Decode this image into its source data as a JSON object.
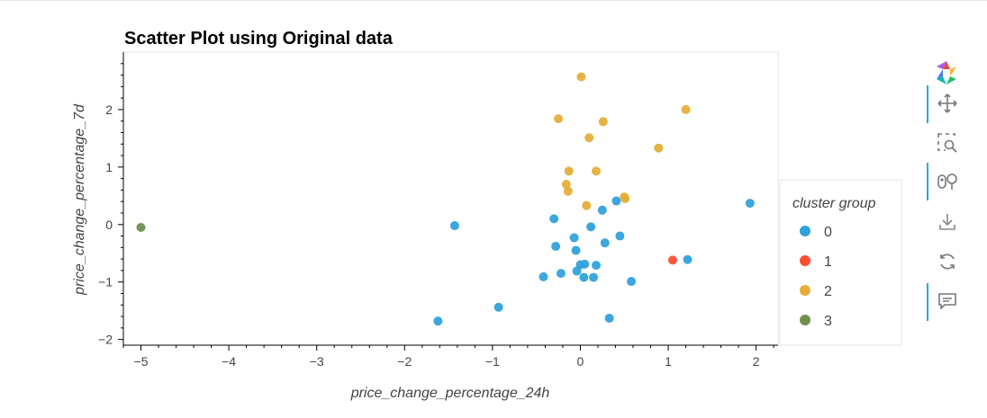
{
  "chart_data": {
    "type": "scatter",
    "title": "Scatter Plot using Original data",
    "xlabel": "price_change_percentage_24h",
    "ylabel": "price_change_percentage_7d",
    "xlim": [
      -5.2,
      2.25
    ],
    "ylim": [
      -2.1,
      3.0
    ],
    "x_ticks": [
      -5,
      -4,
      -3,
      -2,
      -1,
      0,
      1,
      2
    ],
    "y_ticks": [
      -2,
      -1,
      0,
      1,
      2
    ],
    "grid": false,
    "legend": {
      "title": "cluster group",
      "placement": "right"
    },
    "series": [
      {
        "name": "0",
        "color": "#30a2da",
        "points": [
          [
            -1.43,
            -0.02
          ],
          [
            -1.62,
            -1.68
          ],
          [
            -0.93,
            -1.44
          ],
          [
            -0.42,
            -0.91
          ],
          [
            -0.22,
            -0.85
          ],
          [
            -0.3,
            0.1
          ],
          [
            -0.28,
            -0.38
          ],
          [
            -0.07,
            -0.23
          ],
          [
            -0.05,
            -0.45
          ],
          [
            -0.04,
            -0.81
          ],
          [
            0.0,
            -0.7
          ],
          [
            0.05,
            -0.69
          ],
          [
            0.04,
            -0.92
          ],
          [
            0.12,
            -0.04
          ],
          [
            0.15,
            -0.92
          ],
          [
            0.18,
            -0.71
          ],
          [
            0.25,
            0.25
          ],
          [
            0.28,
            -0.32
          ],
          [
            0.33,
            -1.63
          ],
          [
            0.41,
            0.41
          ],
          [
            0.45,
            -0.2
          ],
          [
            0.58,
            -0.99
          ],
          [
            1.22,
            -0.61
          ],
          [
            1.93,
            0.37
          ]
        ]
      },
      {
        "name": "1",
        "color": "#fc4f30",
        "points": [
          [
            1.05,
            -0.62
          ]
        ]
      },
      {
        "name": "2",
        "color": "#e5ae38",
        "points": [
          [
            0.01,
            2.57
          ],
          [
            -0.25,
            1.84
          ],
          [
            0.26,
            1.79
          ],
          [
            0.1,
            1.51
          ],
          [
            -0.13,
            0.93
          ],
          [
            0.18,
            0.93
          ],
          [
            -0.16,
            0.7
          ],
          [
            -0.14,
            0.58
          ],
          [
            0.07,
            0.33
          ],
          [
            0.5,
            0.48
          ],
          [
            0.51,
            0.45
          ],
          [
            0.89,
            1.33
          ],
          [
            1.2,
            2.0
          ]
        ]
      },
      {
        "name": "3",
        "color": "#6d904f",
        "points": [
          [
            -5.0,
            -0.05
          ]
        ]
      }
    ]
  },
  "toolbar": {
    "tools": [
      {
        "name": "logo",
        "icon": "bokeh-logo-icon",
        "active": false
      },
      {
        "name": "pan",
        "icon": "pan-icon",
        "active": true
      },
      {
        "name": "box-zoom",
        "icon": "box-zoom-icon",
        "active": false
      },
      {
        "name": "hover",
        "icon": "hover-icon",
        "active": true
      },
      {
        "name": "save",
        "icon": "save-icon",
        "active": false
      },
      {
        "name": "reset",
        "icon": "reset-icon",
        "active": false
      },
      {
        "name": "comment",
        "icon": "comment-icon",
        "active": true
      }
    ]
  }
}
